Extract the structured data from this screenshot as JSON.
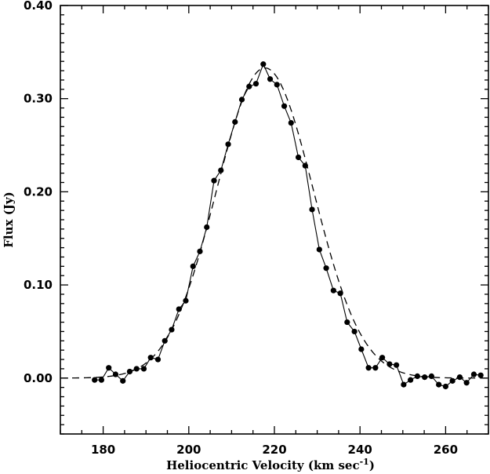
{
  "chart_data": {
    "type": "line",
    "title": "",
    "xlabel": "Heliocentric Velocity (km sec",
    "xlabel_sup": "-1",
    "xlabel_close": ")",
    "ylabel": "Flux (Jy)",
    "xlim": [
      170,
      270
    ],
    "ylim": [
      -0.06,
      0.4
    ],
    "x_ticks": [
      180,
      200,
      220,
      240,
      260
    ],
    "x_tick_labels": [
      "180",
      "200",
      "220",
      "240",
      "260"
    ],
    "y_ticks": [
      0.0,
      0.1,
      0.2,
      0.3,
      0.4
    ],
    "y_tick_labels": [
      "0.00",
      "0.10",
      "0.20",
      "0.30",
      "0.40"
    ],
    "grid": false,
    "series": [
      {
        "style": "solid-line-with-dots",
        "x": [
          178.0,
          179.6,
          181.3,
          182.9,
          184.6,
          186.2,
          187.8,
          189.5,
          191.1,
          192.8,
          194.4,
          196.0,
          197.7,
          199.3,
          201.0,
          202.6,
          204.2,
          205.9,
          207.5,
          209.2,
          210.8,
          212.4,
          214.1,
          215.7,
          217.4,
          219.0,
          220.6,
          222.3,
          223.9,
          225.6,
          227.2,
          228.8,
          230.5,
          232.1,
          233.8,
          235.4,
          237.0,
          238.7,
          240.3,
          242.0,
          243.6,
          245.2,
          246.9,
          248.5,
          250.2,
          251.8,
          253.4,
          255.1,
          256.7,
          258.4,
          260.0,
          261.6,
          263.3,
          264.9,
          266.6,
          268.2
        ],
        "y": [
          -0.002,
          -0.002,
          0.011,
          0.004,
          -0.003,
          0.007,
          0.01,
          0.01,
          0.022,
          0.02,
          0.04,
          0.052,
          0.074,
          0.083,
          0.12,
          0.136,
          0.162,
          0.212,
          0.223,
          0.251,
          0.275,
          0.299,
          0.313,
          0.316,
          0.337,
          0.321,
          0.315,
          0.292,
          0.274,
          0.237,
          0.228,
          0.181,
          0.138,
          0.118,
          0.094,
          0.091,
          0.06,
          0.05,
          0.031,
          0.011,
          0.011,
          0.022,
          0.015,
          0.014,
          -0.007,
          -0.002,
          0.002,
          0.001,
          0.002,
          -0.007,
          -0.009,
          -0.003,
          0.001,
          -0.005,
          0.004,
          0.003
        ]
      },
      {
        "style": "dashed-gaussian-fit",
        "amplitude": 0.333,
        "center": 217.8,
        "sigma": 11.3,
        "x_start": 170,
        "x_end": 270
      }
    ]
  }
}
